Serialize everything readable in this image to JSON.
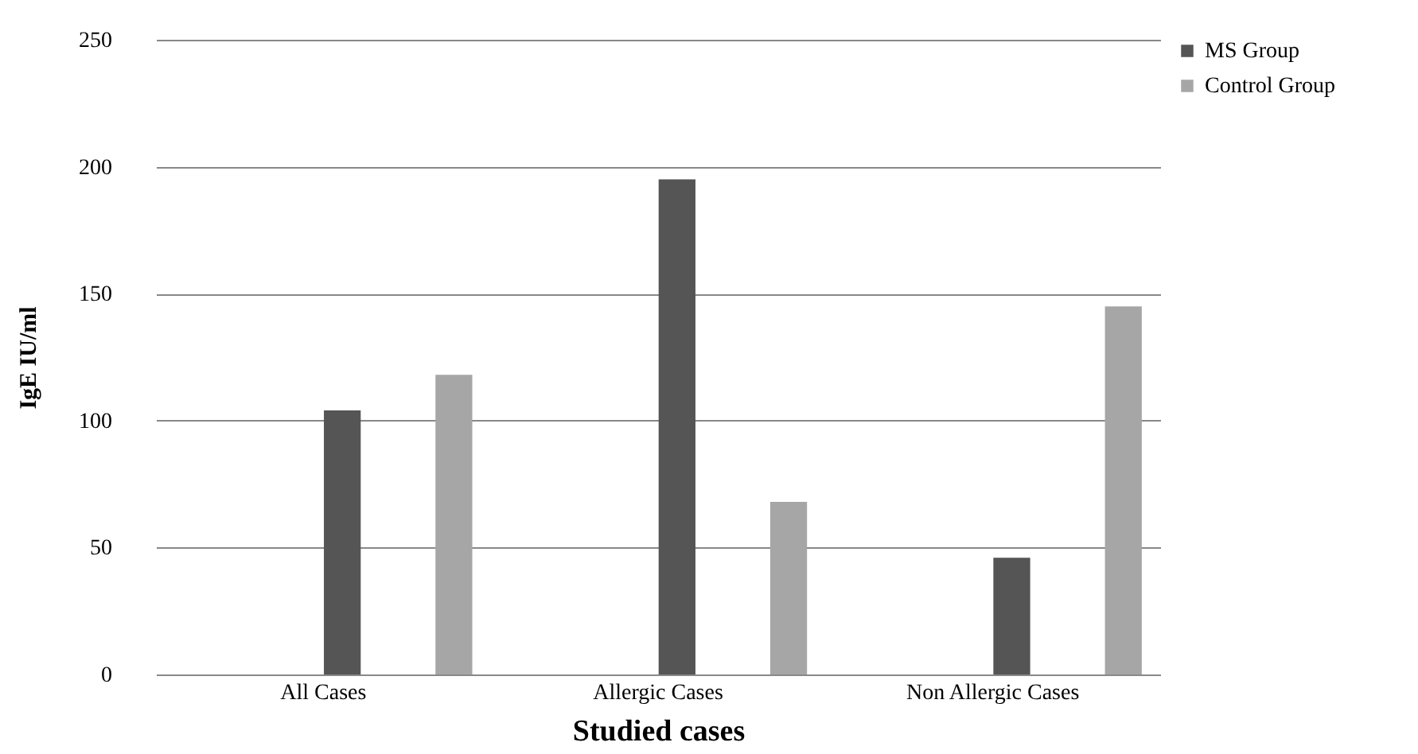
{
  "chart_data": {
    "type": "bar",
    "xlabel": "Studied cases",
    "ylabel": "IgE IU/ml",
    "categories": [
      "All Cases",
      "Allergic Cases",
      "Non Allergic Cases"
    ],
    "series": [
      {
        "name": "MS Group",
        "color": "#555555",
        "values": [
          104,
          195,
          46
        ]
      },
      {
        "name": "Control Group",
        "color": "#a6a6a6",
        "values": [
          118,
          68,
          145
        ]
      }
    ],
    "ylim": [
      0,
      250
    ],
    "yticks": [
      0,
      50,
      100,
      150,
      200,
      250
    ],
    "grid": "y",
    "legend": "right"
  }
}
